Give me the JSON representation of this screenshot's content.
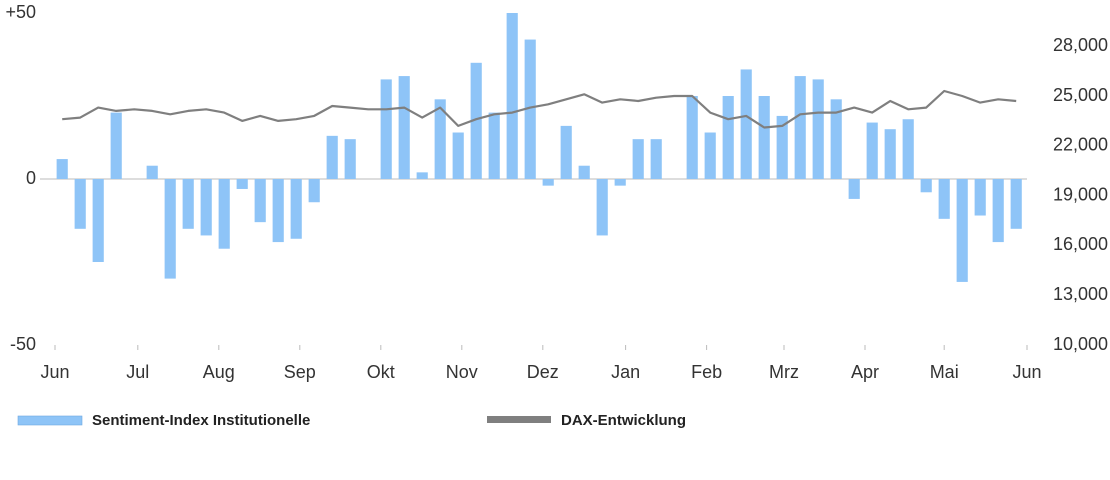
{
  "chart_data": {
    "type": "bar-line",
    "x": [
      0,
      1,
      2,
      3,
      4,
      5,
      6,
      7,
      8,
      9,
      10,
      11,
      12,
      13,
      14,
      15,
      16,
      17,
      18,
      19,
      20,
      21,
      22,
      23,
      24,
      25,
      26,
      27,
      28,
      29,
      30,
      31,
      32,
      33,
      34,
      35,
      36,
      37,
      38,
      39,
      40,
      41,
      42,
      43,
      44,
      45,
      46,
      47,
      48,
      49,
      50,
      51,
      52,
      53
    ],
    "xlim": [
      -0.4,
      53.6
    ],
    "xticks": [
      {
        "value": -0.4,
        "label": "Jun"
      },
      {
        "value": 4.2,
        "label": "Jul"
      },
      {
        "value": 8.7,
        "label": "Aug"
      },
      {
        "value": 13.2,
        "label": "Sep"
      },
      {
        "value": 17.7,
        "label": "Okt"
      },
      {
        "value": 22.2,
        "label": "Nov"
      },
      {
        "value": 26.7,
        "label": "Dez"
      },
      {
        "value": 31.3,
        "label": "Jan"
      },
      {
        "value": 35.8,
        "label": "Feb"
      },
      {
        "value": 40.1,
        "label": "Mrz"
      },
      {
        "value": 44.6,
        "label": "Apr"
      },
      {
        "value": 49,
        "label": "Mai"
      },
      {
        "value": 53.6,
        "label": "Jun"
      }
    ],
    "ylim": [
      -50,
      50
    ],
    "yticks": [
      {
        "value": 50,
        "label": "+50"
      },
      0,
      -50
    ],
    "y2lim": [
      10000,
      30000
    ],
    "y2ticks": [
      {
        "value": 10000,
        "label": "10,000"
      },
      {
        "value": 13000,
        "label": "13,000"
      },
      {
        "value": 16000,
        "label": "16,000"
      },
      {
        "value": 19000,
        "label": "19,000"
      },
      {
        "value": 22000,
        "label": "22,000"
      },
      {
        "value": 25000,
        "label": "25,000"
      },
      {
        "value": 28000,
        "label": "28,000"
      }
    ],
    "series": [
      {
        "name": "Sentiment-Index Institutionelle",
        "type": "bar",
        "color": "#8ec4f7",
        "values": [
          6,
          -15,
          -25,
          20,
          null,
          4,
          -30,
          -15,
          -17,
          -21,
          -3,
          -13,
          -19,
          -18,
          -7,
          13,
          12,
          null,
          30,
          31,
          2,
          24,
          14,
          35,
          20,
          50,
          42,
          -2,
          16,
          4,
          -17,
          -2,
          12,
          12,
          null,
          25,
          14,
          25,
          33,
          25,
          19,
          31,
          30,
          24,
          -6,
          17,
          15,
          18,
          -4,
          -12,
          -31,
          -11,
          -19,
          -15
        ]
      },
      {
        "name": "DAX-Entwicklung",
        "type": "line",
        "axis": "y2",
        "color": "#7f7f7f",
        "values": [
          23600,
          23700,
          24300,
          24100,
          24200,
          24100,
          23900,
          24100,
          24200,
          24000,
          23500,
          23800,
          23500,
          23600,
          23800,
          24400,
          24300,
          24200,
          24200,
          24300,
          23700,
          24300,
          23200,
          23600,
          23900,
          24000,
          24300,
          24500,
          24800,
          25100,
          24600,
          24800,
          24700,
          24900,
          25000,
          25000,
          24000,
          23600,
          23800,
          23100,
          23200,
          23900,
          24000,
          24000,
          24300,
          24000,
          24700,
          24200,
          24300,
          25300,
          25000,
          24600,
          24800,
          24700
        ]
      }
    ]
  }
}
